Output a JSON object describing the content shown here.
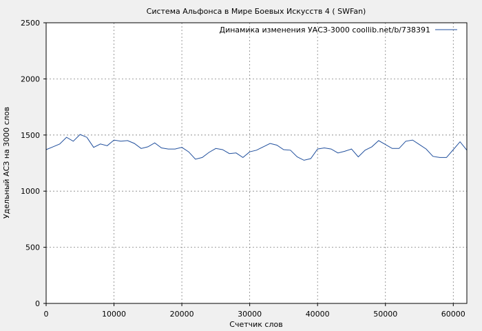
{
  "chart_data": {
    "type": "line",
    "title": "Система Альфонса в Мире Боевых Искусств 4 ( SWFan)",
    "xlabel": "Счетчик слов",
    "ylabel": "Удельный АСЗ на 3000 слов",
    "xlim": [
      0,
      62000
    ],
    "ylim": [
      0,
      2500
    ],
    "x_ticks": [
      0,
      10000,
      20000,
      30000,
      40000,
      50000,
      60000
    ],
    "y_ticks": [
      0,
      500,
      1000,
      1500,
      2000,
      2500
    ],
    "grid": true,
    "legend_position": "top-right",
    "series": [
      {
        "name": "Динамика изменения УАСЗ-3000 coollib.net/b/738391",
        "color": "#1f4e9c",
        "points": [
          [
            0,
            1370
          ],
          [
            1000,
            1395
          ],
          [
            2000,
            1420
          ],
          [
            3000,
            1480
          ],
          [
            4000,
            1445
          ],
          [
            5000,
            1505
          ],
          [
            6000,
            1480
          ],
          [
            7000,
            1390
          ],
          [
            8000,
            1420
          ],
          [
            9000,
            1405
          ],
          [
            10000,
            1455
          ],
          [
            11000,
            1445
          ],
          [
            12000,
            1450
          ],
          [
            13000,
            1425
          ],
          [
            14000,
            1380
          ],
          [
            15000,
            1395
          ],
          [
            16000,
            1430
          ],
          [
            17000,
            1385
          ],
          [
            18000,
            1375
          ],
          [
            19000,
            1375
          ],
          [
            20000,
            1390
          ],
          [
            21000,
            1350
          ],
          [
            22000,
            1285
          ],
          [
            23000,
            1300
          ],
          [
            24000,
            1345
          ],
          [
            25000,
            1380
          ],
          [
            26000,
            1370
          ],
          [
            27000,
            1335
          ],
          [
            28000,
            1340
          ],
          [
            29000,
            1300
          ],
          [
            30000,
            1350
          ],
          [
            31000,
            1365
          ],
          [
            32000,
            1395
          ],
          [
            33000,
            1425
          ],
          [
            34000,
            1410
          ],
          [
            35000,
            1370
          ],
          [
            36000,
            1365
          ],
          [
            37000,
            1305
          ],
          [
            38000,
            1275
          ],
          [
            39000,
            1290
          ],
          [
            40000,
            1375
          ],
          [
            41000,
            1385
          ],
          [
            42000,
            1375
          ],
          [
            43000,
            1340
          ],
          [
            44000,
            1355
          ],
          [
            45000,
            1375
          ],
          [
            46000,
            1305
          ],
          [
            47000,
            1365
          ],
          [
            48000,
            1395
          ],
          [
            49000,
            1450
          ],
          [
            50000,
            1415
          ],
          [
            51000,
            1380
          ],
          [
            52000,
            1380
          ],
          [
            53000,
            1445
          ],
          [
            54000,
            1455
          ],
          [
            55000,
            1415
          ],
          [
            56000,
            1375
          ],
          [
            57000,
            1310
          ],
          [
            58000,
            1300
          ],
          [
            59000,
            1300
          ],
          [
            60000,
            1370
          ],
          [
            61000,
            1440
          ],
          [
            62000,
            1365
          ]
        ]
      }
    ]
  }
}
